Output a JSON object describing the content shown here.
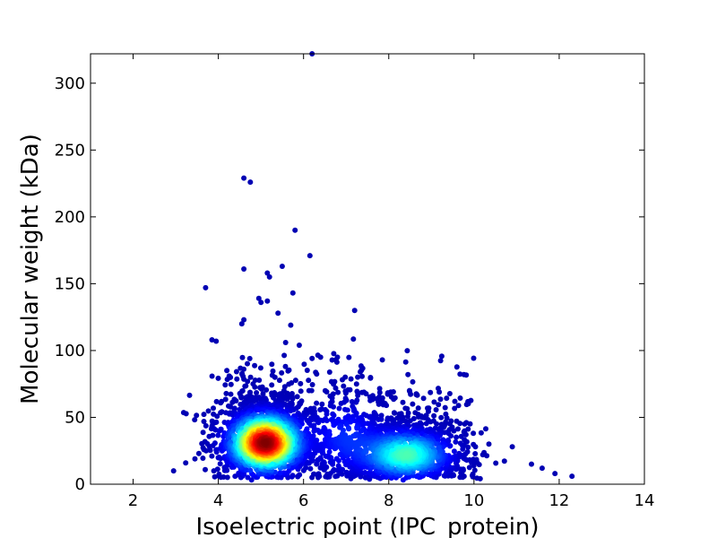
{
  "chart_data": {
    "type": "scatter",
    "title": "",
    "xlabel": "Isoelectric point (IPC_protein)",
    "ylabel": "Molecular weight (kDa)",
    "xlim": [
      1,
      14
    ],
    "ylim": [
      0,
      322
    ],
    "x_ticks": [
      2,
      4,
      6,
      8,
      10,
      12,
      14
    ],
    "y_ticks": [
      0,
      50,
      100,
      150,
      200,
      250,
      300
    ],
    "grid": false,
    "legend": "none",
    "colormap": "jet (point density)",
    "colors": {
      "low_density": "#00008f",
      "mid_density": "#00ffff",
      "high_density": "#ffff00",
      "peak_density": "#800000"
    },
    "density_clusters": [
      {
        "center": [
          5.1,
          31
        ],
        "spread": [
          0.55,
          14
        ],
        "note": "acidic cluster (peak density)"
      },
      {
        "center": [
          8.4,
          22
        ],
        "spread": [
          0.7,
          12
        ],
        "note": "basic cluster"
      },
      {
        "center": [
          7.0,
          35
        ],
        "spread": [
          0.6,
          18
        ],
        "note": "bridge region"
      }
    ],
    "outliers": [
      {
        "x": 6.2,
        "y": 322
      },
      {
        "x": 4.6,
        "y": 229
      },
      {
        "x": 4.75,
        "y": 226
      },
      {
        "x": 5.8,
        "y": 190
      },
      {
        "x": 6.15,
        "y": 171
      },
      {
        "x": 5.5,
        "y": 163
      },
      {
        "x": 4.6,
        "y": 161
      },
      {
        "x": 5.15,
        "y": 158
      },
      {
        "x": 5.2,
        "y": 155
      },
      {
        "x": 3.7,
        "y": 147
      },
      {
        "x": 5.75,
        "y": 143
      },
      {
        "x": 4.95,
        "y": 139
      },
      {
        "x": 5.0,
        "y": 136
      },
      {
        "x": 5.15,
        "y": 137
      },
      {
        "x": 7.2,
        "y": 130
      },
      {
        "x": 5.4,
        "y": 128
      },
      {
        "x": 4.6,
        "y": 123
      },
      {
        "x": 4.55,
        "y": 120
      },
      {
        "x": 5.7,
        "y": 119
      },
      {
        "x": 3.85,
        "y": 108
      },
      {
        "x": 3.95,
        "y": 107
      },
      {
        "x": 5.9,
        "y": 104
      },
      {
        "x": 2.95,
        "y": 10
      },
      {
        "x": 3.45,
        "y": 19
      },
      {
        "x": 10.9,
        "y": 28
      },
      {
        "x": 11.35,
        "y": 15
      },
      {
        "x": 11.6,
        "y": 12
      },
      {
        "x": 11.9,
        "y": 8
      },
      {
        "x": 12.3,
        "y": 6
      },
      {
        "x": 10.35,
        "y": 30
      },
      {
        "x": 9.55,
        "y": 62
      },
      {
        "x": 8.45,
        "y": 82
      },
      {
        "x": 7.85,
        "y": 93
      },
      {
        "x": 6.4,
        "y": 95
      },
      {
        "x": 4.2,
        "y": 85
      }
    ]
  }
}
